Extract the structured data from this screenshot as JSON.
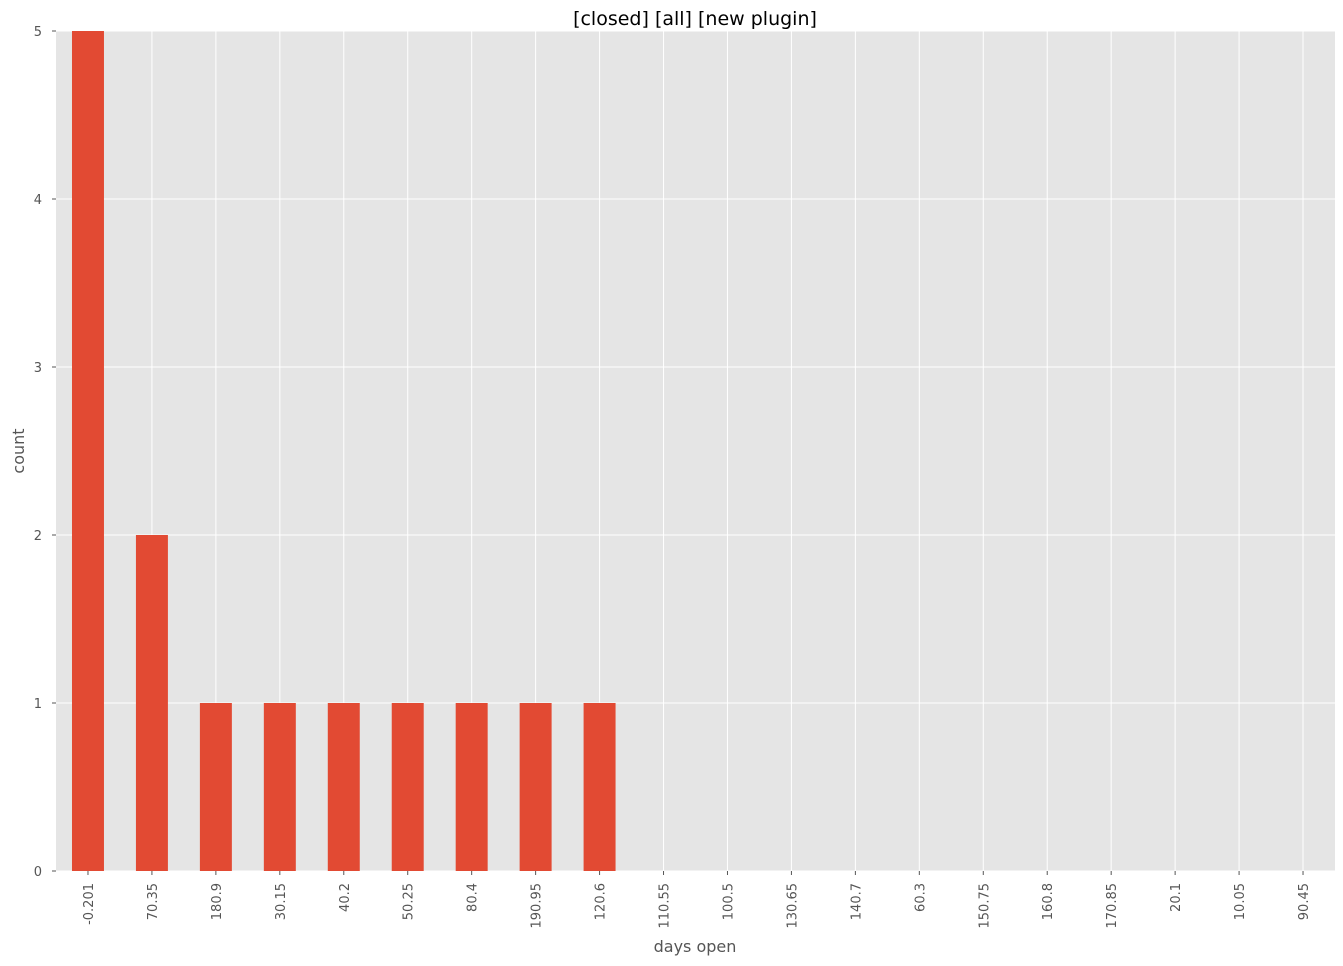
{
  "chart_data": {
    "type": "bar",
    "title": "[closed] [all] [new plugin]",
    "xlabel": "days open",
    "ylabel": "count",
    "categories": [
      "-0.201",
      "70.35",
      "180.9",
      "30.15",
      "40.2",
      "50.25",
      "80.4",
      "190.95",
      "120.6",
      "110.55",
      "100.5",
      "130.65",
      "140.7",
      "60.3",
      "150.75",
      "160.8",
      "170.85",
      "20.1",
      "10.05",
      "90.45"
    ],
    "values": [
      5,
      2,
      1,
      1,
      1,
      1,
      1,
      1,
      1,
      0,
      0,
      0,
      0,
      0,
      0,
      0,
      0,
      0,
      0,
      0
    ],
    "ylim": [
      0,
      5
    ],
    "yticks": [
      0,
      1,
      2,
      3,
      4,
      5
    ],
    "grid": true,
    "colors": {
      "bar": "#E24A33",
      "background": "#E5E5E5",
      "grid": "#FFFFFF"
    }
  }
}
